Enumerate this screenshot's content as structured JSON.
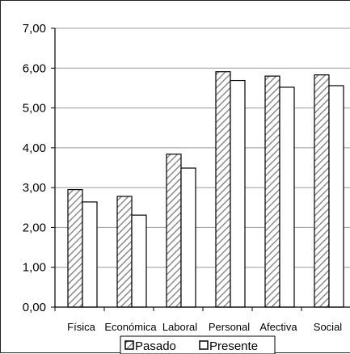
{
  "chart_data": {
    "type": "bar",
    "categories": [
      "Física",
      "Económica",
      "Laboral",
      "Personal",
      "Afectiva",
      "Social"
    ],
    "series": [
      {
        "name": "Pasado",
        "values": [
          2.95,
          2.78,
          3.84,
          5.91,
          5.8,
          5.83
        ],
        "pattern": "diagonal-hatch"
      },
      {
        "name": "Presente",
        "values": [
          2.64,
          2.31,
          3.49,
          5.69,
          5.52,
          5.56
        ],
        "pattern": "white"
      }
    ],
    "yticks": [
      "0,00",
      "1,00",
      "2,00",
      "3,00",
      "4,00",
      "5,00",
      "6,00",
      "7,00"
    ],
    "ylim": [
      0,
      7
    ],
    "grid": true,
    "legend": {
      "placement": "bottom-center",
      "entries": [
        "Pasado",
        "Presente"
      ]
    },
    "colors": {
      "hatch": "#8c8c8c",
      "border": "#000000",
      "grid": "#999999"
    }
  }
}
